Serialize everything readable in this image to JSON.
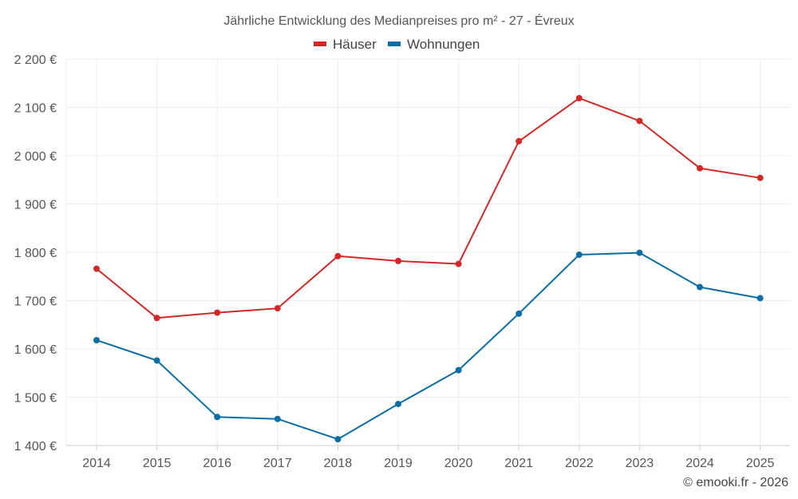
{
  "chart_data": {
    "type": "line",
    "title": "Jährliche Entwicklung des Medianpreises pro m² - 27 - Évreux",
    "categories": [
      "2014",
      "2015",
      "2016",
      "2017",
      "2018",
      "2019",
      "2020",
      "2021",
      "2022",
      "2023",
      "2024",
      "2025"
    ],
    "series": [
      {
        "name": "Häuser",
        "color": "#d62728",
        "values": [
          1766,
          1664,
          1675,
          1684,
          1792,
          1782,
          1776,
          2030,
          2119,
          2072,
          1974,
          1954
        ]
      },
      {
        "name": "Wohnungen",
        "color": "#0b6fa4",
        "values": [
          1618,
          1576,
          1459,
          1455,
          1413,
          1486,
          1556,
          1673,
          1795,
          1799,
          1728,
          1705
        ]
      }
    ],
    "ylim": [
      1400,
      2200
    ],
    "yticks": [
      1400,
      1500,
      1600,
      1700,
      1800,
      1900,
      2000,
      2100,
      2200
    ],
    "ytick_labels": [
      "1 400 €",
      "1 500 €",
      "1 600 €",
      "1 700 €",
      "1 800 €",
      "1 900 €",
      "2 000 €",
      "2 100 €",
      "2 200 €"
    ],
    "legend_position": "top-center",
    "grid": true
  },
  "credit": "© emooki.fr - 2026"
}
